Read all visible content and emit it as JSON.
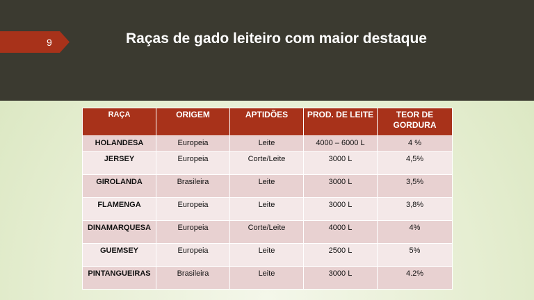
{
  "slide": {
    "number": "9",
    "title": "Raças de gado leiteiro com maior destaque"
  },
  "table": {
    "headers": [
      "RAÇA",
      "ORIGEM",
      "APTIDÕES",
      "PROD. DE LEITE",
      "TEOR DE GORDURA"
    ],
    "rows": [
      [
        "HOLANDESA",
        "Europeia",
        "Leite",
        "4000 – 6000 L",
        "4 %"
      ],
      [
        "JERSEY",
        "Europeia",
        "Corte/Leite",
        "3000 L",
        "4,5%"
      ],
      [
        "GIROLANDA",
        "Brasileira",
        "Leite",
        "3000 L",
        "3,5%"
      ],
      [
        "FLAMENGA",
        "Europeia",
        "Leite",
        "3000 L",
        "3,8%"
      ],
      [
        "DINAMARQUESA",
        "Europeia",
        "Corte/Leite",
        "4000 L",
        "4%"
      ],
      [
        "GUEMSEY",
        "Europeia",
        "Leite",
        "2500 L",
        "5%"
      ],
      [
        "PINTANGUEIRAS",
        "Brasileira",
        "Leite",
        "3000 L",
        "4.2%"
      ]
    ]
  }
}
